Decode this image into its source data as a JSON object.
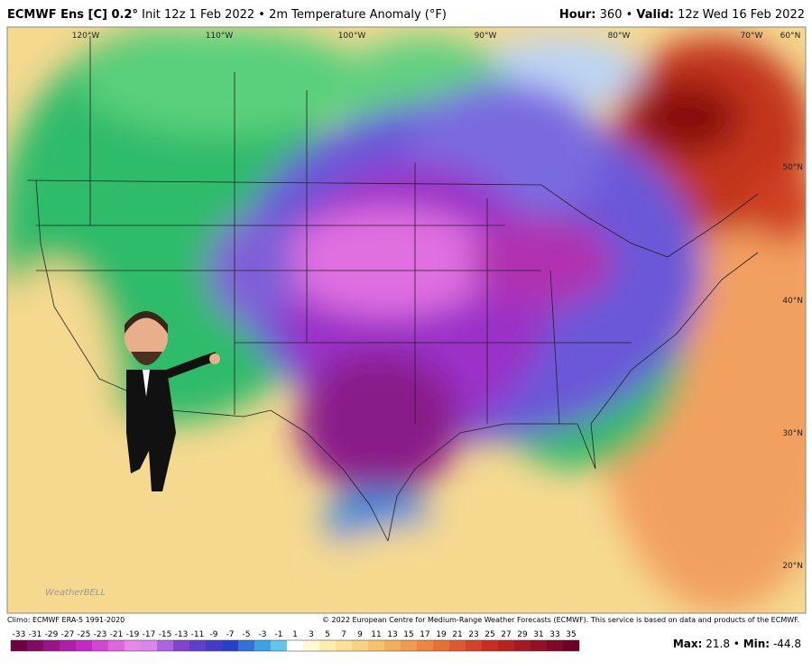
{
  "header": {
    "title_bold": "ECMWF Ens [C] 0.2°",
    "title_rest": "Init 12z 1 Feb 2022 • 2m Temperature Anomaly (°F)",
    "right_bold": "Hour:",
    "hour": "360 •",
    "valid_bold": "Valid:",
    "valid": "12z Wed 16 Feb 2022"
  },
  "map": {
    "lon_labels": [
      "120°W",
      "110°W",
      "100°W",
      "90°W",
      "80°W",
      "70°W",
      "60°N"
    ],
    "lat_labels": [
      "50°N",
      "40°N",
      "30°N",
      "20°N"
    ],
    "watermark": "WeatherBELL"
  },
  "footer": {
    "climo": "Climo: ECMWF ERA-5 1991-2020",
    "copyright": "© 2022 European Centre for Medium-Range Weather Forecasts (ECMWF). This service is based on data and products of the ECMWF."
  },
  "colorbar": {
    "ticks": [
      -33,
      -31,
      -29,
      -27,
      -25,
      -23,
      -21,
      -19,
      -17,
      -15,
      -13,
      -11,
      -9,
      -7,
      -5,
      -3,
      -1,
      1,
      3,
      5,
      7,
      9,
      11,
      13,
      15,
      17,
      19,
      21,
      23,
      25,
      27,
      29,
      31,
      33,
      35
    ]
  },
  "stats": {
    "max_label": "Max:",
    "max": 21.8,
    "separator": "•",
    "min_label": "Min:",
    "min": -44.8
  }
}
